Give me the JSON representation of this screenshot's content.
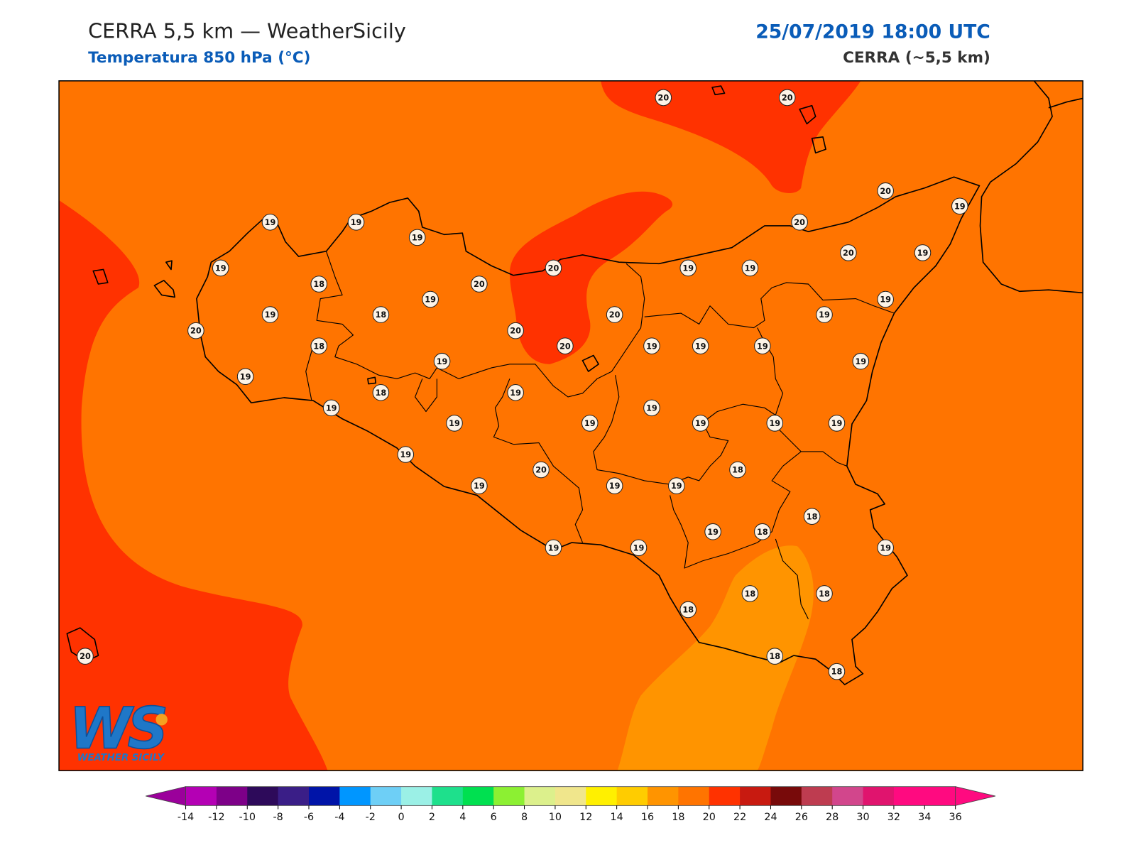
{
  "header": {
    "title": "CERRA 5,5 km — WeatherSicily",
    "subtitle": "Temperatura 850 hPa (°C)",
    "datetime": "25/07/2019 18:00 UTC",
    "model": "CERRA (~5,5 km)"
  },
  "stations": [
    20,
    20,
    20,
    19,
    19,
    19,
    19,
    20,
    19,
    20,
    19,
    19,
    20,
    19,
    18,
    20,
    19,
    19,
    19,
    18,
    20,
    19,
    20,
    20,
    18,
    20,
    19,
    19,
    19,
    19,
    19,
    19,
    18,
    19,
    19,
    19,
    19,
    19,
    19,
    19,
    19,
    19,
    20,
    18,
    19,
    19,
    19,
    18,
    19,
    18,
    19,
    19,
    19,
    18,
    18,
    18,
    18,
    18,
    20
  ],
  "logo": {
    "mark": "WS",
    "name": "WEATHER SICILY"
  },
  "colorbar": {
    "ticks": [
      -14,
      -12,
      -10,
      -8,
      -6,
      -4,
      -2,
      0,
      2,
      4,
      6,
      8,
      10,
      12,
      14,
      16,
      18,
      20,
      22,
      24,
      26,
      28,
      30,
      32,
      34,
      36
    ],
    "colors": [
      "#b400b4",
      "#7d0088",
      "#2d0a5a",
      "#3a1e87",
      "#0014a8",
      "#0096ff",
      "#6ecff6",
      "#9bf0e6",
      "#1ee08c",
      "#00e050",
      "#8cf032",
      "#dcf08c",
      "#f0e68c",
      "#fff000",
      "#ffcc00",
      "#ff9400",
      "#ff7400",
      "#ff3200",
      "#c81a10",
      "#780a0a",
      "#be3c50",
      "#d2468c",
      "#e0146e",
      "#ff0a80",
      "#ff0a80"
    ],
    "under_color": "#9b009b",
    "over_color": "#ff0a80"
  }
}
